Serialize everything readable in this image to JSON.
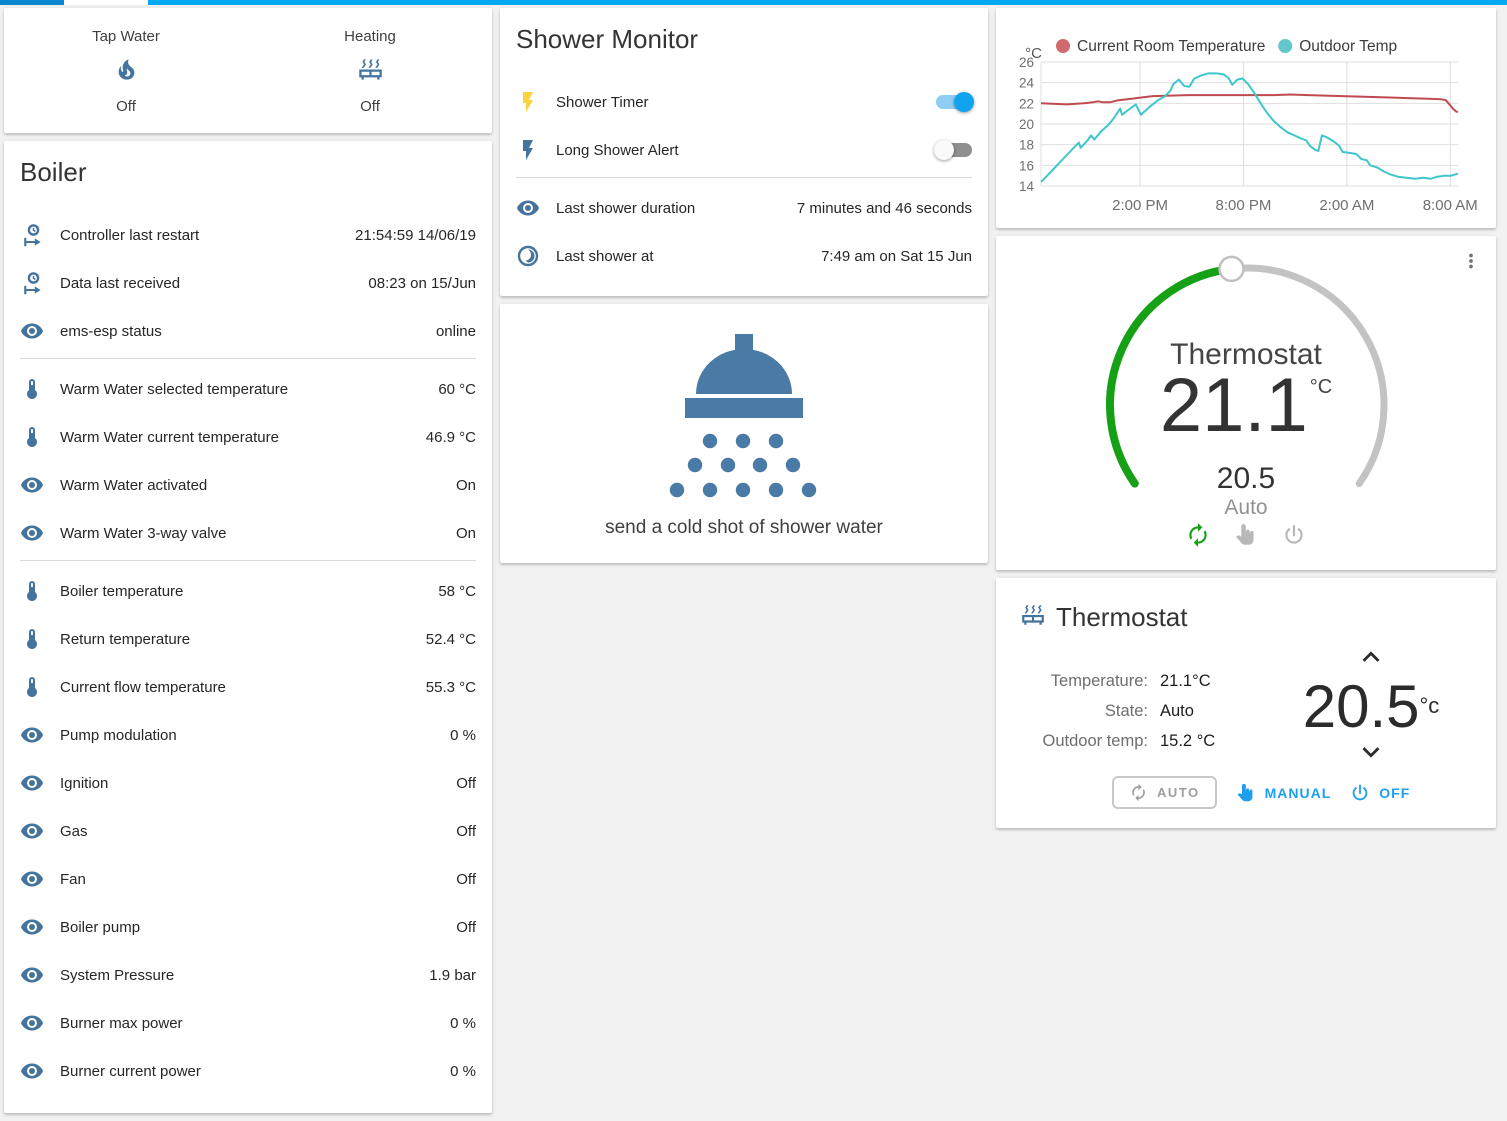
{
  "colors": {
    "accent_blue": "#04a9f4",
    "tab_dark_blue": "#0b86d1",
    "icon_blue": "#44739e",
    "toggle_on_thumb": "#12a3f0",
    "toggle_on_track": "#8ecef5",
    "toggle_off_thumb": "#fafafa",
    "toggle_off_track": "#8f8f8f",
    "flash_yellow": "#fdd23a",
    "chart_room_red": "#bf4a50",
    "chart_outdoor_teal": "#3fc6ca",
    "legend_room_dot": "#d06a6e",
    "legend_outdoor_dot": "#62c6ca",
    "dial_green": "#16a016",
    "dial_gray": "#c3c3c3",
    "action_blue": "#1e9fee",
    "muted_gray": "#9e9e9e"
  },
  "badges": {
    "items": [
      {
        "name": "Tap Water",
        "icon": "fire-icon",
        "state": "Off"
      },
      {
        "name": "Heating",
        "icon": "radiator-icon",
        "state": "Off"
      }
    ]
  },
  "boiler": {
    "title": "Boiler",
    "sections": [
      {
        "rows": [
          {
            "icon": "clock-start-icon",
            "label": "Controller last restart",
            "value": "21:54:59 14/06/19"
          },
          {
            "icon": "clock-start-icon",
            "label": "Data last received",
            "value": "08:23 on 15/Jun"
          },
          {
            "icon": "eye-icon",
            "label": "ems-esp status",
            "value": "online"
          }
        ]
      },
      {
        "rows": [
          {
            "icon": "thermometer-icon",
            "label": "Warm Water selected temperature",
            "value": "60 °C"
          },
          {
            "icon": "thermometer-icon",
            "label": "Warm Water current temperature",
            "value": "46.9 °C"
          },
          {
            "icon": "eye-icon",
            "label": "Warm Water activated",
            "value": "On"
          },
          {
            "icon": "eye-icon",
            "label": "Warm Water 3-way valve",
            "value": "On"
          }
        ]
      },
      {
        "rows": [
          {
            "icon": "thermometer-icon",
            "label": "Boiler temperature",
            "value": "58 °C"
          },
          {
            "icon": "thermometer-icon",
            "label": "Return temperature",
            "value": "52.4 °C"
          },
          {
            "icon": "thermometer-icon",
            "label": "Current flow temperature",
            "value": "55.3 °C"
          },
          {
            "icon": "eye-icon",
            "label": "Pump modulation",
            "value": "0 %"
          },
          {
            "icon": "eye-icon",
            "label": "Ignition",
            "value": "Off"
          },
          {
            "icon": "eye-icon",
            "label": "Gas",
            "value": "Off"
          },
          {
            "icon": "eye-icon",
            "label": "Fan",
            "value": "Off"
          },
          {
            "icon": "eye-icon",
            "label": "Boiler pump",
            "value": "Off"
          },
          {
            "icon": "eye-icon",
            "label": "System Pressure",
            "value": "1.9 bar"
          },
          {
            "icon": "eye-icon",
            "label": "Burner max power",
            "value": "0 %"
          },
          {
            "icon": "eye-icon",
            "label": "Burner current power",
            "value": "0 %"
          }
        ]
      }
    ]
  },
  "shower_monitor": {
    "title": "Shower Monitor",
    "toggle_rows": [
      {
        "icon": "flash-icon",
        "icon_color": "#fdd23a",
        "label": "Shower Timer",
        "state": "on"
      },
      {
        "icon": "flash-icon",
        "icon_color": "#44739e",
        "label": "Long Shower Alert",
        "state": "off"
      }
    ],
    "info_rows": [
      {
        "icon": "eye-icon",
        "label": "Last shower duration",
        "value": "7 minutes and 46 seconds"
      },
      {
        "icon": "clock-partial-icon",
        "label": "Last shower at",
        "value": "7:49 am on Sat 15 Jun"
      }
    ]
  },
  "shower_action": {
    "icon": "shower-head-icon",
    "label": "send a cold shot of shower water"
  },
  "chart_data": {
    "type": "line",
    "unit": "°C",
    "ylim": [
      14,
      26
    ],
    "yticks": [
      26,
      24,
      22,
      20,
      18,
      16,
      14
    ],
    "xlim": [
      0,
      24.2
    ],
    "xticks": [
      {
        "h": 5.75,
        "label": "2:00 PM"
      },
      {
        "h": 11.75,
        "label": "8:00 PM"
      },
      {
        "h": 17.75,
        "label": "2:00 AM"
      },
      {
        "h": 23.75,
        "label": "8:00 AM"
      }
    ],
    "grid": true,
    "legend_position": "top",
    "series": [
      {
        "name": "Current Room Temperature",
        "color": "#bf4a50",
        "dot": "#d06a6e",
        "points": [
          [
            0,
            22.0
          ],
          [
            1.5,
            21.9
          ],
          [
            2.5,
            22.0
          ],
          [
            3.0,
            22.1
          ],
          [
            3.3,
            22.2
          ],
          [
            3.6,
            22.1
          ],
          [
            4.0,
            22.1
          ],
          [
            4.5,
            22.3
          ],
          [
            5.0,
            22.4
          ],
          [
            5.5,
            22.5
          ],
          [
            6.0,
            22.6
          ],
          [
            6.5,
            22.7
          ],
          [
            7.5,
            22.75
          ],
          [
            8.5,
            22.8
          ],
          [
            10,
            22.8
          ],
          [
            12,
            22.8
          ],
          [
            13.5,
            22.8
          ],
          [
            14.5,
            22.85
          ],
          [
            15.5,
            22.8
          ],
          [
            16.5,
            22.75
          ],
          [
            17.5,
            22.7
          ],
          [
            18.5,
            22.65
          ],
          [
            19.5,
            22.6
          ],
          [
            20.5,
            22.55
          ],
          [
            21.5,
            22.5
          ],
          [
            22.5,
            22.45
          ],
          [
            23.2,
            22.4
          ],
          [
            23.5,
            22.3
          ],
          [
            23.7,
            21.9
          ],
          [
            23.9,
            21.5
          ],
          [
            24.1,
            21.2
          ],
          [
            24.2,
            21.15
          ]
        ]
      },
      {
        "name": "Outdoor Temp",
        "color": "#3fc6ca",
        "dot": "#62c6ca",
        "points": [
          [
            0,
            14.4
          ],
          [
            0.3,
            14.9
          ],
          [
            0.7,
            15.6
          ],
          [
            1.1,
            16.3
          ],
          [
            1.5,
            17.0
          ],
          [
            1.9,
            17.7
          ],
          [
            2.2,
            18.2
          ],
          [
            2.3,
            17.7
          ],
          [
            2.7,
            18.4
          ],
          [
            2.9,
            18.9
          ],
          [
            3.1,
            18.5
          ],
          [
            3.5,
            19.3
          ],
          [
            3.9,
            19.9
          ],
          [
            4.2,
            20.5
          ],
          [
            4.4,
            21.0
          ],
          [
            4.6,
            21.5
          ],
          [
            4.7,
            20.9
          ],
          [
            5.1,
            21.4
          ],
          [
            5.5,
            21.9
          ],
          [
            5.8,
            20.9
          ],
          [
            6.0,
            21.2
          ],
          [
            6.4,
            21.8
          ],
          [
            6.8,
            22.3
          ],
          [
            7.2,
            22.7
          ],
          [
            7.5,
            23.2
          ],
          [
            7.7,
            23.9
          ],
          [
            8.0,
            24.3
          ],
          [
            8.3,
            23.7
          ],
          [
            8.6,
            23.6
          ],
          [
            8.9,
            24.4
          ],
          [
            9.3,
            24.7
          ],
          [
            9.7,
            24.9
          ],
          [
            10.2,
            24.9
          ],
          [
            10.6,
            24.8
          ],
          [
            10.9,
            24.4
          ],
          [
            11.1,
            23.8
          ],
          [
            11.4,
            24.3
          ],
          [
            11.7,
            24.4
          ],
          [
            12.0,
            23.9
          ],
          [
            12.3,
            23.2
          ],
          [
            12.6,
            22.4
          ],
          [
            12.9,
            21.6
          ],
          [
            13.2,
            20.9
          ],
          [
            13.5,
            20.3
          ],
          [
            13.9,
            19.7
          ],
          [
            14.3,
            19.2
          ],
          [
            14.7,
            18.9
          ],
          [
            15.1,
            18.6
          ],
          [
            15.4,
            18.4
          ],
          [
            15.6,
            17.9
          ],
          [
            15.9,
            17.5
          ],
          [
            16.1,
            17.4
          ],
          [
            16.3,
            18.9
          ],
          [
            16.6,
            18.7
          ],
          [
            17.0,
            18.3
          ],
          [
            17.3,
            17.9
          ],
          [
            17.5,
            17.3
          ],
          [
            17.9,
            17.2
          ],
          [
            18.3,
            17.1
          ],
          [
            18.6,
            16.6
          ],
          [
            18.9,
            16.5
          ],
          [
            19.1,
            16.0
          ],
          [
            19.5,
            15.8
          ],
          [
            19.9,
            15.4
          ],
          [
            20.3,
            15.1
          ],
          [
            20.7,
            14.9
          ],
          [
            21.2,
            14.8
          ],
          [
            21.7,
            14.7
          ],
          [
            22.2,
            14.8
          ],
          [
            22.6,
            14.7
          ],
          [
            23.0,
            14.9
          ],
          [
            23.4,
            15.0
          ],
          [
            23.8,
            15.0
          ],
          [
            24.2,
            15.2
          ]
        ]
      }
    ]
  },
  "dial": {
    "title": "Thermostat",
    "current": "21.1",
    "unit": "°C",
    "target": "20.5",
    "mode": "Auto"
  },
  "thermostat": {
    "title": "Thermostat",
    "info": [
      {
        "label": "Temperature:",
        "value": "21.1°C"
      },
      {
        "label": "State:",
        "value": "Auto"
      },
      {
        "label": "Outdoor temp:",
        "value": "15.2 °C"
      }
    ],
    "setpoint": "20.5",
    "setpoint_unit": "°c",
    "buttons": [
      {
        "icon": "autorenew-icon",
        "label": "AUTO",
        "kind": "outlined"
      },
      {
        "icon": "hand-icon",
        "label": "MANUAL",
        "kind": "text"
      },
      {
        "icon": "power-icon",
        "label": "OFF",
        "kind": "text"
      }
    ]
  }
}
